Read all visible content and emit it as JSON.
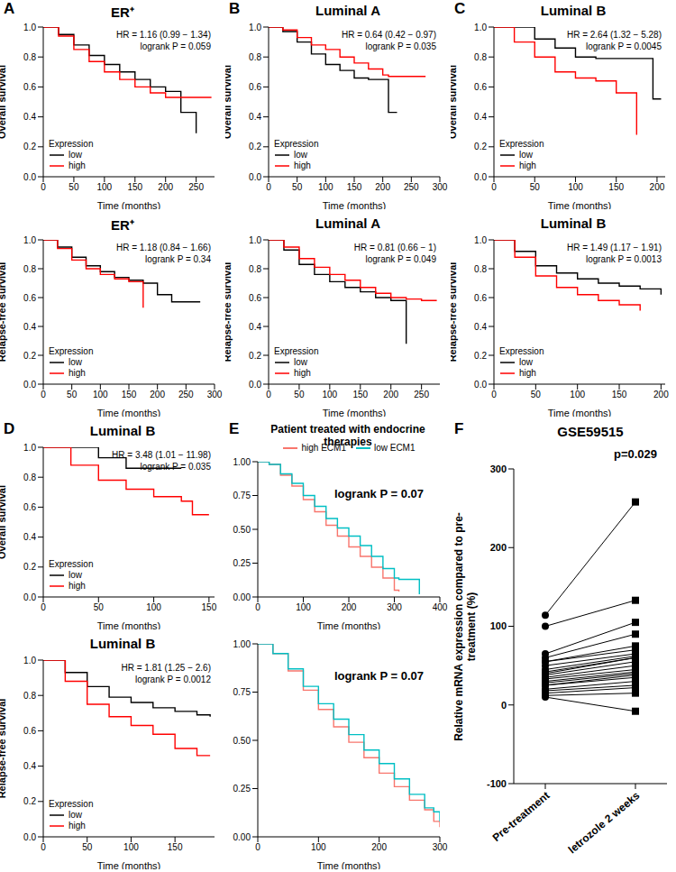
{
  "chart_data": [
    {
      "type": "line",
      "panel": "A",
      "title": "ER⁺",
      "annotations": [
        "HR = 1.16 (0.99 − 1.34)",
        "logrank P = 0.059"
      ],
      "xlabel": "Time (months)",
      "ylabel": "Overall survival",
      "legend": "bottom-left",
      "legend_title": "Expression",
      "line_style": "step",
      "x": [
        0,
        25,
        50,
        75,
        100,
        125,
        150,
        175,
        200,
        225,
        250,
        275
      ],
      "series": [
        {
          "name": "low",
          "color": "#000000",
          "values": [
            1,
            0.95,
            0.88,
            0.81,
            0.75,
            0.7,
            0.65,
            0.6,
            0.57,
            0.43,
            0.29,
            null
          ]
        },
        {
          "name": "high",
          "color": "#ff0000",
          "values": [
            1,
            0.94,
            0.85,
            0.77,
            0.7,
            0.65,
            0.6,
            0.56,
            0.53,
            0.53,
            0.53,
            0.53
          ]
        }
      ],
      "xlim": [
        0,
        280
      ],
      "xticks": [
        0,
        50,
        100,
        150,
        200,
        250
      ],
      "ylim": [
        0,
        1
      ],
      "yticks": [
        {
          "value": 0,
          "label": "0.0"
        },
        0.2,
        0.4,
        0.6,
        0.8,
        {
          "value": 1,
          "label": "1.0"
        }
      ]
    },
    {
      "type": "line",
      "panel": "B",
      "title": "Luminal A",
      "annotations": [
        "HR = 0.64 (0.42 − 0.97)",
        "logrank P = 0.035"
      ],
      "xlabel": "Time (months)",
      "ylabel": "Overall survival",
      "legend": "bottom-left",
      "legend_title": "Expression",
      "line_style": "step",
      "x": [
        0,
        25,
        50,
        75,
        100,
        125,
        150,
        175,
        200,
        210,
        225,
        250,
        275
      ],
      "series": [
        {
          "name": "low",
          "color": "#000000",
          "values": [
            1,
            0.97,
            0.9,
            0.82,
            0.75,
            0.71,
            0.66,
            0.65,
            0.65,
            0.43,
            0.43,
            null,
            null
          ]
        },
        {
          "name": "high",
          "color": "#ff0000",
          "values": [
            1,
            0.98,
            0.93,
            0.88,
            0.85,
            0.8,
            0.76,
            0.72,
            0.68,
            0.67,
            0.67,
            0.67,
            0.67
          ]
        }
      ],
      "xlim": [
        0,
        300
      ],
      "xticks": [
        0,
        50,
        100,
        150,
        200,
        250,
        300
      ],
      "ylim": [
        0,
        1
      ],
      "yticks": [
        {
          "value": 0,
          "label": "0.0"
        },
        0.2,
        0.4,
        0.6,
        0.8,
        {
          "value": 1,
          "label": "1.0"
        }
      ]
    },
    {
      "type": "line",
      "panel": "C",
      "title": "Luminal B",
      "annotations": [
        "HR = 2.64 (1.32 − 5.28)",
        "logrank P = 0.0045"
      ],
      "xlabel": "Time (months)",
      "ylabel": "Overall survival",
      "legend": "bottom-left",
      "legend_title": "Expression",
      "line_style": "step",
      "x": [
        0,
        25,
        50,
        75,
        100,
        125,
        150,
        175,
        195,
        205
      ],
      "series": [
        {
          "name": "low",
          "color": "#000000",
          "values": [
            1,
            1,
            0.92,
            0.86,
            0.8,
            0.79,
            0.79,
            0.79,
            0.52,
            0.52
          ]
        },
        {
          "name": "high",
          "color": "#ff0000",
          "values": [
            1,
            0.9,
            0.8,
            0.7,
            0.66,
            0.64,
            0.56,
            0.28,
            null,
            null
          ]
        }
      ],
      "xlim": [
        0,
        210
      ],
      "xticks": [
        0,
        50,
        100,
        150,
        200
      ],
      "ylim": [
        0,
        1
      ],
      "yticks": [
        {
          "value": 0,
          "label": "0.0"
        },
        0.2,
        0.4,
        0.6,
        0.8,
        {
          "value": 1,
          "label": "1.0"
        }
      ]
    },
    {
      "type": "line",
      "title": "ER⁺",
      "annotations": [
        "HR = 1.18 (0.84 − 1.66)",
        "logrank P = 0.34"
      ],
      "xlabel": "Time (months)",
      "ylabel": "Relapse-free survival",
      "legend": "bottom-left",
      "legend_title": "Expression",
      "line_style": "step",
      "x": [
        0,
        25,
        50,
        75,
        100,
        125,
        150,
        175,
        200,
        225,
        250,
        275
      ],
      "series": [
        {
          "name": "low",
          "color": "#000000",
          "values": [
            1,
            0.95,
            0.88,
            0.82,
            0.78,
            0.74,
            0.72,
            0.7,
            0.62,
            0.57,
            0.57,
            0.57
          ]
        },
        {
          "name": "high",
          "color": "#ff0000",
          "values": [
            1,
            0.94,
            0.86,
            0.8,
            0.76,
            0.73,
            0.71,
            0.53,
            null,
            null,
            null,
            null
          ]
        }
      ],
      "xlim": [
        0,
        300
      ],
      "xticks": [
        0,
        50,
        100,
        150,
        200,
        250,
        300
      ],
      "ylim": [
        0,
        1
      ],
      "yticks": [
        {
          "value": 0,
          "label": "0.0"
        },
        0.2,
        0.4,
        0.6,
        0.8,
        {
          "value": 1,
          "label": "1.0"
        }
      ]
    },
    {
      "type": "line",
      "title": "Luminal A",
      "annotations": [
        "HR = 0.81 (0.66 − 1)",
        "logrank P = 0.049"
      ],
      "xlabel": "Time (months)",
      "ylabel": "Relapse-free survival",
      "legend": "bottom-left",
      "legend_title": "Expression",
      "line_style": "step",
      "x": [
        0,
        25,
        50,
        75,
        100,
        125,
        150,
        175,
        200,
        225,
        250,
        275
      ],
      "series": [
        {
          "name": "low",
          "color": "#000000",
          "values": [
            1,
            0.93,
            0.83,
            0.76,
            0.71,
            0.67,
            0.64,
            0.6,
            0.58,
            0.28,
            null,
            null
          ]
        },
        {
          "name": "high",
          "color": "#ff0000",
          "values": [
            1,
            0.95,
            0.87,
            0.81,
            0.76,
            0.72,
            0.67,
            0.63,
            0.6,
            0.59,
            0.58,
            0.58
          ]
        }
      ],
      "xlim": [
        0,
        280
      ],
      "xticks": [
        0,
        50,
        100,
        150,
        200,
        250
      ],
      "ylim": [
        0,
        1
      ],
      "yticks": [
        {
          "value": 0,
          "label": "0.0"
        },
        0.2,
        0.4,
        0.6,
        0.8,
        {
          "value": 1,
          "label": "1.0"
        }
      ]
    },
    {
      "type": "line",
      "title": "Luminal B",
      "annotations": [
        "HR = 1.49 (1.17 − 1.91)",
        "logrank P = 0.0013"
      ],
      "xlabel": "Time (months)",
      "ylabel": "Relapse-free survival",
      "legend": "bottom-left",
      "legend_title": "Expression",
      "line_style": "step",
      "x": [
        0,
        25,
        50,
        75,
        100,
        125,
        150,
        175,
        200
      ],
      "series": [
        {
          "name": "low",
          "color": "#000000",
          "values": [
            1,
            0.92,
            0.82,
            0.77,
            0.73,
            0.7,
            0.68,
            0.66,
            0.62
          ]
        },
        {
          "name": "high",
          "color": "#ff0000",
          "values": [
            1,
            0.88,
            0.75,
            0.67,
            0.62,
            0.58,
            0.55,
            0.51,
            null
          ]
        }
      ],
      "xlim": [
        0,
        205
      ],
      "xticks": [
        0,
        50,
        100,
        150,
        200
      ],
      "ylim": [
        0,
        1
      ],
      "yticks": [
        {
          "value": 0,
          "label": "0.0"
        },
        0.2,
        0.4,
        0.6,
        0.8,
        {
          "value": 1,
          "label": "1.0"
        }
      ]
    },
    {
      "type": "line",
      "panel": "D",
      "title": "Luminal B",
      "annotations": [
        "HR = 3.48 (1.01 − 11.98)",
        "logrank P = 0.035"
      ],
      "xlabel": "Time (months)",
      "ylabel": "Overall survival",
      "legend": "bottom-left",
      "legend_title": "Expression",
      "line_style": "step",
      "x": [
        0,
        25,
        50,
        75,
        100,
        125,
        135,
        150
      ],
      "series": [
        {
          "name": "low",
          "color": "#000000",
          "values": [
            1,
            1,
            0.93,
            0.86,
            0.86,
            0.86,
            null,
            null
          ]
        },
        {
          "name": "high",
          "color": "#ff0000",
          "values": [
            1,
            0.88,
            0.78,
            0.72,
            0.67,
            0.64,
            0.55,
            0.55
          ]
        }
      ],
      "xlim": [
        0,
        155
      ],
      "xticks": [
        0,
        50,
        100,
        150
      ],
      "ylim": [
        0,
        1
      ],
      "yticks": [
        {
          "value": 0,
          "label": "0.0"
        },
        0.2,
        0.4,
        0.6,
        0.8,
        {
          "value": 1,
          "label": "1.0"
        }
      ]
    },
    {
      "type": "line",
      "title": "Luminal B",
      "annotations": [
        "HR = 1.81 (1.25 − 2.6)",
        "logrank P = 0.0012"
      ],
      "xlabel": "Time (months)",
      "ylabel": "Relapse-free survival",
      "legend": "bottom-left",
      "legend_title": "Expression",
      "line_style": "step",
      "x": [
        0,
        25,
        50,
        75,
        100,
        125,
        150,
        175,
        190
      ],
      "series": [
        {
          "name": "low",
          "color": "#000000",
          "values": [
            1,
            0.93,
            0.85,
            0.79,
            0.76,
            0.73,
            0.71,
            0.69,
            0.68
          ]
        },
        {
          "name": "high",
          "color": "#ff0000",
          "values": [
            1,
            0.88,
            0.75,
            0.68,
            0.63,
            0.58,
            0.5,
            0.46,
            0.46
          ]
        }
      ],
      "xlim": [
        0,
        195
      ],
      "xticks": [
        0,
        50,
        100,
        150
      ],
      "ylim": [
        0,
        1
      ],
      "yticks": [
        {
          "value": 0,
          "label": "0.0"
        },
        0.2,
        0.4,
        0.6,
        0.8,
        {
          "value": 1,
          "label": "1.0"
        }
      ]
    },
    {
      "type": "line",
      "panel": "E",
      "title": "Patient treated with endocrine therapies",
      "annotations": [
        "logrank P = 0.07"
      ],
      "xlabel": "Time (months)",
      "legend": "top",
      "line_style": "step",
      "x": [
        0,
        25,
        50,
        75,
        100,
        125,
        150,
        175,
        200,
        225,
        250,
        275,
        300,
        310,
        330,
        350,
        355
      ],
      "series": [
        {
          "name": "high ECM1",
          "color": "#f8766d",
          "values": [
            1,
            0.98,
            0.9,
            0.82,
            0.72,
            0.63,
            0.53,
            0.45,
            0.37,
            0.3,
            0.22,
            0.14,
            0.05,
            0.04,
            null,
            null,
            null
          ]
        },
        {
          "name": "low ECM1",
          "color": "#00bfc4",
          "values": [
            1,
            0.98,
            0.91,
            0.84,
            0.75,
            0.67,
            0.58,
            0.51,
            0.45,
            0.38,
            0.3,
            0.21,
            0.14,
            0.13,
            0.13,
            0.13,
            0.02
          ]
        }
      ],
      "xlim": [
        0,
        400
      ],
      "xticks": [
        0,
        100,
        200,
        300,
        400
      ],
      "ylim": [
        0,
        1
      ],
      "yticks": [
        {
          "value": 0,
          "label": "0.00"
        },
        0.25,
        {
          "value": 0.5,
          "label": "0.50"
        },
        0.75,
        {
          "value": 1,
          "label": "1.00"
        }
      ]
    },
    {
      "type": "line",
      "annotations": [
        "logrank P = 0.07"
      ],
      "xlabel": "Time (months)",
      "line_style": "step",
      "x": [
        0,
        25,
        50,
        75,
        100,
        125,
        150,
        175,
        200,
        225,
        250,
        275,
        290,
        300
      ],
      "series": [
        {
          "name": "high ECM1",
          "color": "#f8766d",
          "values": [
            1,
            0.95,
            0.86,
            0.76,
            0.66,
            0.57,
            0.49,
            0.41,
            0.33,
            0.26,
            0.19,
            0.14,
            0.08,
            0.05
          ]
        },
        {
          "name": "low ECM1",
          "color": "#00bfc4",
          "values": [
            1,
            0.95,
            0.87,
            0.78,
            0.69,
            0.61,
            0.53,
            0.45,
            0.38,
            0.3,
            0.22,
            0.15,
            0.13,
            0.08
          ]
        }
      ],
      "xlim": [
        0,
        300
      ],
      "xticks": [
        0,
        100,
        200,
        300
      ],
      "ylim": [
        0,
        1
      ],
      "yticks": [
        {
          "value": 0,
          "label": "0.00"
        },
        0.25,
        {
          "value": 0.5,
          "label": "0.50"
        },
        0.75,
        {
          "value": 1,
          "label": "1.00"
        }
      ]
    },
    {
      "type": "paired",
      "panel": "F",
      "title": "GSE59515",
      "annotations": [
        "p=0.029"
      ],
      "ylabel": "Relative mRNA expression compared to pre-treatment (%)",
      "color": "#000000",
      "categories": [
        "Pre-treatment",
        "letrozole 2 weeks"
      ],
      "groups": [
        {
          "marker": "circle",
          "values": [
            114,
            100,
            65,
            60,
            55,
            55,
            50,
            45,
            42,
            40,
            38,
            35,
            33,
            30,
            28,
            25,
            25,
            20,
            18,
            15,
            12,
            10
          ]
        },
        {
          "marker": "square",
          "values": [
            258,
            133,
            105,
            90,
            75,
            70,
            65,
            62,
            60,
            60,
            55,
            50,
            45,
            42,
            40,
            38,
            35,
            30,
            25,
            22,
            15,
            -8
          ]
        }
      ],
      "ylim": [
        -100,
        300
      ],
      "yticks": [
        -100,
        0,
        100,
        200,
        300
      ]
    }
  ]
}
